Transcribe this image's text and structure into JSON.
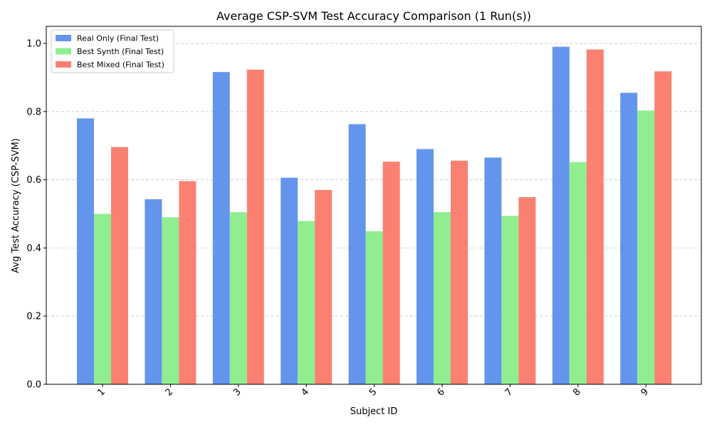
{
  "chart_data": {
    "type": "bar",
    "title": "Average CSP-SVM Test Accuracy Comparison (1 Run(s))",
    "xlabel": "Subject ID",
    "ylabel": "Avg Test Accuracy (CSP-SVM)",
    "categories": [
      "1",
      "2",
      "3",
      "4",
      "5",
      "6",
      "7",
      "8",
      "9"
    ],
    "ylim": [
      0,
      1.05
    ],
    "yticks": [
      "0.0",
      "0.2",
      "0.4",
      "0.6",
      "0.8",
      "1.0"
    ],
    "grid": "y-dashed",
    "legend_position": "top-left",
    "series": [
      {
        "name": "Real Only (Final Test)",
        "color": "#6495ED",
        "values": [
          0.78,
          0.543,
          0.916,
          0.606,
          0.763,
          0.69,
          0.665,
          0.99,
          0.855
        ]
      },
      {
        "name": "Best Synth (Final Test)",
        "color": "#90EE90",
        "values": [
          0.5,
          0.49,
          0.505,
          0.479,
          0.449,
          0.505,
          0.494,
          0.652,
          0.803
        ]
      },
      {
        "name": "Best Mixed (Final Test)",
        "color": "#FA8072",
        "values": [
          0.696,
          0.596,
          0.923,
          0.57,
          0.653,
          0.656,
          0.549,
          0.982,
          0.918
        ]
      }
    ]
  }
}
